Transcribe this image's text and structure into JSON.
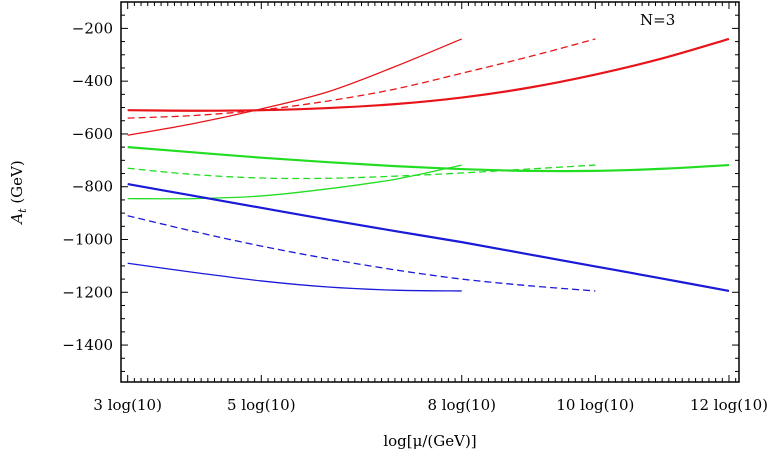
{
  "chart_data": {
    "type": "line",
    "title": "",
    "xlabel": "log[μ/(GeV)]",
    "ylabel": "A_t (GeV)",
    "annotation": "N=3",
    "xlim": [
      2.9,
      12.15
    ],
    "ylim": [
      -1540,
      -100
    ],
    "grid": false,
    "legend": "none",
    "x_ticks": [
      {
        "value": 3,
        "label": "3 log(10)"
      },
      {
        "value": 5,
        "label": "5 log(10)"
      },
      {
        "value": 8,
        "label": "8 log(10)"
      },
      {
        "value": 10,
        "label": "10 log(10)"
      },
      {
        "value": 12,
        "label": "12 log(10)"
      }
    ],
    "y_ticks": [
      {
        "value": -200,
        "label": "−200"
      },
      {
        "value": -400,
        "label": "−400"
      },
      {
        "value": -600,
        "label": "−600"
      },
      {
        "value": -800,
        "label": "−800"
      },
      {
        "value": -1000,
        "label": "−1000"
      },
      {
        "value": -1200,
        "label": "−1200"
      },
      {
        "value": -1400,
        "label": "−1400"
      }
    ],
    "series": [
      {
        "color": "#e8141a",
        "style": "solid-thick",
        "x": [
          3,
          4,
          5,
          6,
          7,
          8,
          9,
          10,
          11,
          12
        ],
        "y": [
          -510,
          -512,
          -510,
          -502,
          -487,
          -462,
          -425,
          -375,
          -314,
          -240
        ]
      },
      {
        "color": "#e8141a",
        "style": "dashed",
        "x": [
          3,
          4,
          5,
          6,
          7,
          8,
          9,
          10
        ],
        "y": [
          -540,
          -530,
          -509,
          -475,
          -430,
          -370,
          -308,
          -240
        ]
      },
      {
        "color": "#e8141a",
        "style": "solid-thin",
        "x": [
          3,
          4,
          5,
          6,
          7,
          8
        ],
        "y": [
          -605,
          -560,
          -505,
          -440,
          -345,
          -240
        ]
      },
      {
        "color": "#22dd22",
        "style": "solid-thick",
        "x": [
          3,
          4,
          5,
          6,
          7,
          8,
          9,
          10,
          11,
          12
        ],
        "y": [
          -650,
          -670,
          -690,
          -707,
          -722,
          -733,
          -740,
          -740,
          -732,
          -718
        ]
      },
      {
        "color": "#22dd22",
        "style": "dashed",
        "x": [
          3,
          4,
          5,
          6,
          7,
          8,
          9,
          10
        ],
        "y": [
          -730,
          -754,
          -767,
          -768,
          -760,
          -748,
          -733,
          -718
        ]
      },
      {
        "color": "#22dd22",
        "style": "solid-thin",
        "x": [
          3,
          4,
          5,
          6,
          7,
          8
        ],
        "y": [
          -845,
          -845,
          -835,
          -808,
          -772,
          -718
        ]
      },
      {
        "color": "#1a1ad8",
        "style": "solid-thick",
        "x": [
          3,
          4,
          5,
          6,
          7,
          8,
          9,
          10,
          11,
          12
        ],
        "y": [
          -790,
          -835,
          -880,
          -925,
          -968,
          -1010,
          -1056,
          -1102,
          -1148,
          -1195
        ]
      },
      {
        "color": "#1a1ad8",
        "style": "dashed",
        "x": [
          3,
          4,
          5,
          6,
          7,
          8,
          9,
          10
        ],
        "y": [
          -910,
          -970,
          -1025,
          -1073,
          -1115,
          -1150,
          -1175,
          -1195
        ]
      },
      {
        "color": "#1a1ad8",
        "style": "solid-thin",
        "x": [
          3,
          4,
          5,
          6,
          7,
          8
        ],
        "y": [
          -1090,
          -1125,
          -1157,
          -1180,
          -1192,
          -1195
        ]
      }
    ]
  }
}
